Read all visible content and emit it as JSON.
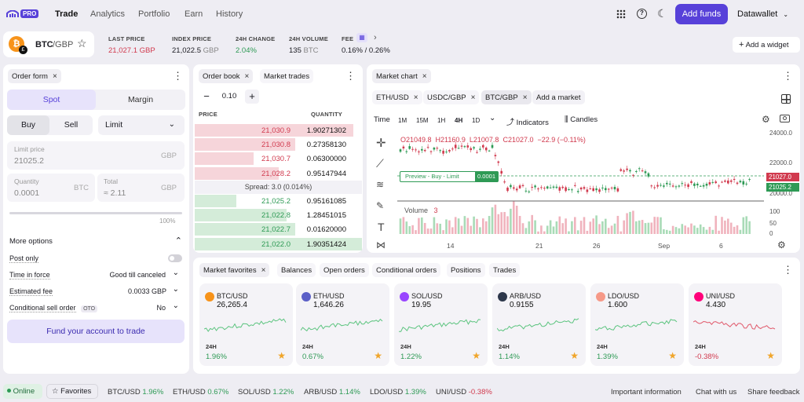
{
  "colors": {
    "accent": "#5741d9",
    "bid": "#2e9a55",
    "ask": "#d13a4e"
  },
  "topbar": {
    "logo": "PRO",
    "nav": [
      "Trade",
      "Analytics",
      "Portfolio",
      "Earn",
      "History"
    ],
    "add_funds": "Add funds",
    "account": "Datawallet"
  },
  "ticker": {
    "pair_base": "BTC",
    "pair_quote": "/GBP",
    "stats": [
      {
        "label": "LAST PRICE",
        "value": "21,027.1",
        "unit": "GBP"
      },
      {
        "label": "INDEX PRICE",
        "value": "21,022.5",
        "unit": "GBP"
      },
      {
        "label": "24H CHANGE",
        "value": "2.04%",
        "unit": ""
      },
      {
        "label": "24H VOLUME",
        "value": "135",
        "unit": "BTC"
      },
      {
        "label": "FEE",
        "value": "0.16% / 0.26%",
        "unit": ""
      }
    ],
    "add_widget": "Add a widget"
  },
  "order_form": {
    "tab": "Order form",
    "spot": "Spot",
    "margin": "Margin",
    "buy": "Buy",
    "sell": "Sell",
    "type": "Limit",
    "limit_label": "Limit price",
    "limit_value": "21025.2",
    "limit_unit": "GBP",
    "qty_label": "Quantity",
    "qty_value": "0.0001",
    "qty_unit": "BTC",
    "total_label": "Total",
    "total_value": "≈ 2.11",
    "total_unit": "GBP",
    "slider_max": "100%",
    "more": "More options",
    "options": [
      {
        "label": "Post only",
        "value": ""
      },
      {
        "label": "Time in force",
        "value": "Good till canceled"
      },
      {
        "label": "Estimated fee",
        "value": "0.0033 GBP"
      },
      {
        "label": "Conditional sell order",
        "badge": "OTO",
        "value": "No"
      }
    ],
    "fund": "Fund your account to trade"
  },
  "order_book": {
    "tab": "Order book",
    "tab2": "Market trades",
    "step": "0.10",
    "col_price": "PRICE",
    "col_qty": "QUANTITY",
    "asks": [
      {
        "p": "21,030.9",
        "q": "1.90271302",
        "d": 0.95
      },
      {
        "p": "21,030.8",
        "q": "0.27358130",
        "d": 0.6
      },
      {
        "p": "21,030.7",
        "q": "0.06300000",
        "d": 0.35
      },
      {
        "p": "21,028.2",
        "q": "0.95147944",
        "d": 0.5
      }
    ],
    "spread": "Spread: 3.0 (0.014%)",
    "bids": [
      {
        "p": "21,025.2",
        "q": "0.95161085",
        "d": 0.25
      },
      {
        "p": "21,022.8",
        "q": "1.28451015",
        "d": 0.55
      },
      {
        "p": "21,022.7",
        "q": "0.01620000",
        "d": 0.6
      },
      {
        "p": "21,022.0",
        "q": "1.90351424",
        "d": 1.0
      }
    ]
  },
  "market_chart": {
    "tab": "Market chart",
    "markets": [
      "ETH/USD",
      "USDC/GBP",
      "BTC/GBP"
    ],
    "add_market": "Add a market",
    "time": "Time",
    "intervals": [
      "1M",
      "15M",
      "1H",
      "4H",
      "1D"
    ],
    "indicators": "Indicators",
    "candles": "Candles",
    "ohlc": "O21049.8  H21160.9  L21007.8  C21027.0  −22.9 (−0.11%)",
    "preview": "Preview - Buy - Limit",
    "preview_qty": "0.0001",
    "y_ticks": [
      "24000.0",
      "22000.0",
      "20000.0"
    ],
    "price_tag1": "21027.0",
    "price_tag2": "21025.2",
    "vol_label": "Volume",
    "vol_value": "3",
    "vol_ticks": [
      "100",
      "50",
      "0"
    ],
    "x_ticks": [
      "14",
      "21",
      "26",
      "Sep",
      "6"
    ]
  },
  "bottom_tabs": [
    "Market favorites",
    "Balances",
    "Open orders",
    "Conditional orders",
    "Positions",
    "Trades"
  ],
  "favorites": [
    {
      "sym": "BTC/USD",
      "price": "26,265.4",
      "chg": "1.96%",
      "up": true,
      "color": "#f7931a"
    },
    {
      "sym": "ETH/USD",
      "price": "1,646.26",
      "chg": "0.67%",
      "up": true,
      "color": "#5b5fc7"
    },
    {
      "sym": "SOL/USD",
      "price": "19.95",
      "chg": "1.22%",
      "up": true,
      "color": "#9945ff"
    },
    {
      "sym": "ARB/USD",
      "price": "0.9155",
      "chg": "1.14%",
      "up": true,
      "color": "#2d374b"
    },
    {
      "sym": "LDO/USD",
      "price": "1.600",
      "chg": "1.39%",
      "up": true,
      "color": "#f69988"
    },
    {
      "sym": "UNI/USD",
      "price": "4.430",
      "chg": "-0.38%",
      "up": false,
      "color": "#ff007a"
    }
  ],
  "h24": "24H",
  "status": {
    "online": "Online",
    "favorites": "Favorites",
    "tickers": [
      {
        "s": "BTC/USD",
        "c": "1.96%",
        "up": true
      },
      {
        "s": "ETH/USD",
        "c": "0.67%",
        "up": true
      },
      {
        "s": "SOL/USD",
        "c": "1.22%",
        "up": true
      },
      {
        "s": "ARB/USD",
        "c": "1.14%",
        "up": true
      },
      {
        "s": "LDO/USD",
        "c": "1.39%",
        "up": true
      },
      {
        "s": "UNI/USD",
        "c": "-0.38%",
        "up": false
      }
    ],
    "links": [
      "Important information",
      "Chat with us",
      "Share feedback"
    ]
  }
}
